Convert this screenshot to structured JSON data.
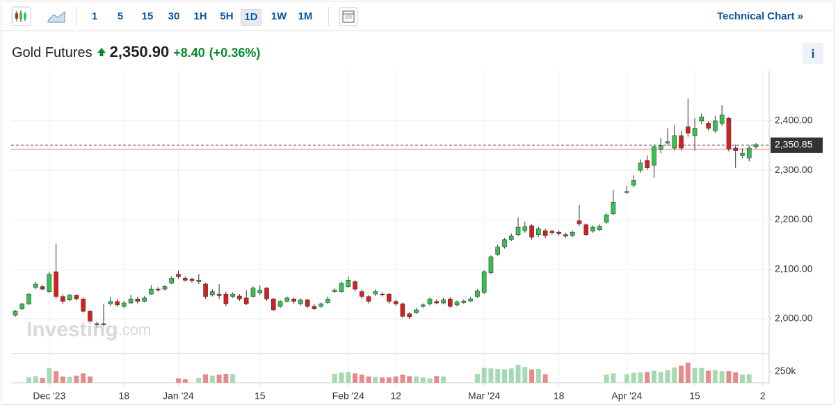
{
  "toolbar": {
    "intervals": [
      "1",
      "5",
      "15",
      "30",
      "1H",
      "5H",
      "1D",
      "1W",
      "1M"
    ],
    "selected": "1D",
    "link": "Technical Chart »"
  },
  "quote": {
    "name": "Gold Futures",
    "price": "2,350.90",
    "change": "+8.40",
    "change_pct": "(+0.36%)"
  },
  "watermark": {
    "brand": "Investing",
    "suffix": ".com"
  },
  "chart_data": {
    "type": "candlestick",
    "categories": [
      null,
      null,
      null,
      null,
      null,
      "Dec '23",
      null,
      null,
      null,
      null,
      null,
      null,
      null,
      null,
      null,
      null,
      "18",
      null,
      null,
      null,
      null,
      null,
      null,
      null,
      "Jan '24",
      null,
      null,
      null,
      null,
      null,
      null,
      null,
      null,
      null,
      null,
      null,
      "15",
      null,
      null,
      null,
      null,
      null,
      null,
      null,
      null,
      null,
      null,
      null,
      null,
      "Feb '24",
      null,
      null,
      null,
      null,
      null,
      null,
      "12",
      null,
      null,
      null,
      null,
      null,
      null,
      null,
      null,
      null,
      null,
      null,
      null,
      "Mar '24",
      null,
      null,
      null,
      null,
      null,
      null,
      null,
      null,
      null,
      null,
      "18",
      null,
      null,
      null,
      null,
      null,
      null,
      null,
      null,
      null,
      "Apr '24",
      null,
      null,
      null,
      null,
      null,
      null,
      null,
      null,
      null,
      "15",
      null,
      null,
      null,
      null,
      null,
      null,
      null,
      null,
      null,
      "2"
    ],
    "open": [
      2007,
      2020,
      2030,
      2063,
      2065,
      2055,
      2095,
      2045,
      2038,
      2047,
      2040,
      2015,
      1990,
      1990,
      2030,
      2035,
      2025,
      2032,
      2040,
      2035,
      2050,
      2060,
      2060,
      2072,
      2090,
      2082,
      2080,
      2075,
      2070,
      2048,
      2050,
      2050,
      2045,
      2046,
      2042,
      2045,
      2052,
      2062,
      2040,
      2025,
      2035,
      2040,
      2030,
      2038,
      2025,
      2025,
      2033,
      2055,
      2055,
      2065,
      2075,
      2055,
      2045,
      2050,
      2050,
      2050,
      2035,
      2030,
      2010,
      2012,
      2025,
      2030,
      2035,
      2032,
      2040,
      2028,
      2033,
      2036,
      2045,
      2053,
      2093,
      2130,
      2145,
      2160,
      2170,
      2178,
      2188,
      2170,
      2178,
      2177,
      2175,
      2170,
      2168,
      2198,
      2190,
      2177,
      2180,
      2195,
      2212,
      null,
      2255,
      2270,
      2300,
      2320,
      2310,
      2342,
      2355,
      2345,
      2370,
      2388,
      2370,
      2400,
      2395,
      2380,
      2395,
      2405,
      2345,
      2330,
      2325,
      2347,
      null
    ],
    "high": [
      2018,
      2032,
      2052,
      2075,
      2068,
      2095,
      2152,
      2050,
      2050,
      2050,
      2044,
      2018,
      1994,
      2030,
      2045,
      2040,
      2036,
      2048,
      2044,
      2046,
      2068,
      2064,
      2068,
      2086,
      2097,
      2086,
      2083,
      2090,
      2073,
      2060,
      2070,
      2055,
      2053,
      2050,
      2058,
      2065,
      2068,
      2064,
      2042,
      2038,
      2045,
      2043,
      2041,
      2040,
      2030,
      2033,
      2045,
      2062,
      2075,
      2085,
      2078,
      2060,
      2048,
      2060,
      2054,
      2052,
      2038,
      2033,
      2013,
      2022,
      2031,
      2043,
      2039,
      2042,
      2043,
      2037,
      2039,
      2044,
      2060,
      2098,
      2128,
      2150,
      2163,
      2172,
      2205,
      2196,
      2192,
      2186,
      2182,
      2180,
      2179,
      2174,
      2178,
      2230,
      2193,
      2189,
      2191,
      2214,
      2260,
      null,
      2268,
      2290,
      2322,
      2330,
      2352,
      2365,
      2385,
      2392,
      2380,
      2445,
      2405,
      2415,
      2400,
      2410,
      2432,
      2408,
      2352,
      2345,
      2350,
      2355,
      null
    ],
    "low": [
      2004,
      2018,
      2028,
      2060,
      2057,
      2052,
      2040,
      2030,
      2035,
      2037,
      2012,
      1990,
      1982,
      1985,
      2026,
      2024,
      2022,
      2030,
      2030,
      2033,
      2048,
      2055,
      2057,
      2070,
      2080,
      2075,
      2073,
      2070,
      2040,
      2045,
      2040,
      2025,
      2042,
      2036,
      2028,
      2043,
      2048,
      2036,
      2016,
      2022,
      2033,
      2030,
      2027,
      2022,
      2018,
      2022,
      2030,
      2052,
      2052,
      2062,
      2055,
      2040,
      2030,
      2046,
      2045,
      2030,
      2026,
      2002,
      2000,
      2010,
      2022,
      2027,
      2029,
      2029,
      2022,
      2025,
      2030,
      2034,
      2042,
      2050,
      2090,
      2127,
      2142,
      2157,
      2167,
      2174,
      2160,
      2166,
      2163,
      2170,
      2168,
      2163,
      2165,
      2188,
      2167,
      2174,
      2177,
      2192,
      2210,
      null,
      2252,
      2266,
      2295,
      2300,
      2285,
      2335,
      2350,
      2340,
      2340,
      2368,
      2340,
      2393,
      2380,
      2375,
      2390,
      2338,
      2305,
      2325,
      2318,
      2344,
      null
    ],
    "close": [
      2015,
      2030,
      2050,
      2070,
      2060,
      2090,
      2045,
      2035,
      2048,
      2040,
      2015,
      1995,
      1988,
      1988,
      2035,
      2028,
      2032,
      2040,
      2035,
      2042,
      2060,
      2058,
      2065,
      2082,
      2085,
      2078,
      2077,
      2078,
      2045,
      2055,
      2047,
      2030,
      2050,
      2040,
      2030,
      2062,
      2058,
      2040,
      2018,
      2035,
      2042,
      2035,
      2038,
      2025,
      2020,
      2030,
      2040,
      2058,
      2072,
      2078,
      2060,
      2045,
      2035,
      2055,
      2048,
      2035,
      2030,
      2005,
      2004,
      2018,
      2028,
      2040,
      2032,
      2038,
      2025,
      2034,
      2036,
      2040,
      2056,
      2095,
      2125,
      2145,
      2160,
      2167,
      2185,
      2186,
      2165,
      2182,
      2168,
      2174,
      2172,
      2167,
      2175,
      2192,
      2170,
      2185,
      2187,
      2210,
      2235,
      null,
      2257,
      2280,
      2315,
      2305,
      2348,
      2350,
      2358,
      2370,
      2345,
      2375,
      2385,
      2408,
      2385,
      2400,
      2412,
      2343,
      2340,
      2335,
      2345,
      2352,
      null
    ],
    "volume": [
      null,
      null,
      120000,
      150000,
      110000,
      330000,
      260000,
      140000,
      130000,
      160000,
      210000,
      140000,
      null,
      null,
      null,
      null,
      null,
      null,
      null,
      null,
      null,
      null,
      null,
      null,
      100000,
      80000,
      null,
      110000,
      190000,
      160000,
      180000,
      200000,
      190000,
      null,
      null,
      null,
      null,
      null,
      null,
      null,
      null,
      null,
      null,
      null,
      null,
      null,
      null,
      200000,
      230000,
      240000,
      210000,
      180000,
      140000,
      130000,
      120000,
      120000,
      140000,
      180000,
      150000,
      140000,
      120000,
      100000,
      150000,
      140000,
      null,
      null,
      null,
      null,
      200000,
      330000,
      320000,
      310000,
      300000,
      320000,
      400000,
      350000,
      300000,
      310000,
      190000,
      null,
      null,
      null,
      null,
      null,
      null,
      null,
      null,
      180000,
      210000,
      null,
      190000,
      220000,
      230000,
      240000,
      270000,
      240000,
      280000,
      340000,
      380000,
      450000,
      330000,
      330000,
      270000,
      280000,
      260000,
      260000,
      230000,
      180000,
      190000,
      null,
      null
    ],
    "ylim": [
      1931,
      2501
    ],
    "yticks": [
      {
        "value": 2000,
        "label": "2,000.00"
      },
      {
        "value": 2100,
        "label": "2,100.00"
      },
      {
        "value": 2200,
        "label": "2,200.00"
      },
      {
        "value": 2300,
        "label": "2,300.00"
      },
      {
        "value": 2400,
        "label": "2,400.00"
      }
    ],
    "volume_ylim": [
      0,
      650000
    ],
    "volume_yticks": [
      {
        "value": 250000,
        "label": "250k"
      }
    ],
    "last_price": {
      "value": 2350.85,
      "label": "2,350.85"
    },
    "previous_close": 2342.5,
    "up_color": "#35c24f",
    "down_color": "#d91e1e",
    "up_volume_color": "#a7d9b5",
    "down_volume_color": "#e98a8a",
    "grid": true
  }
}
